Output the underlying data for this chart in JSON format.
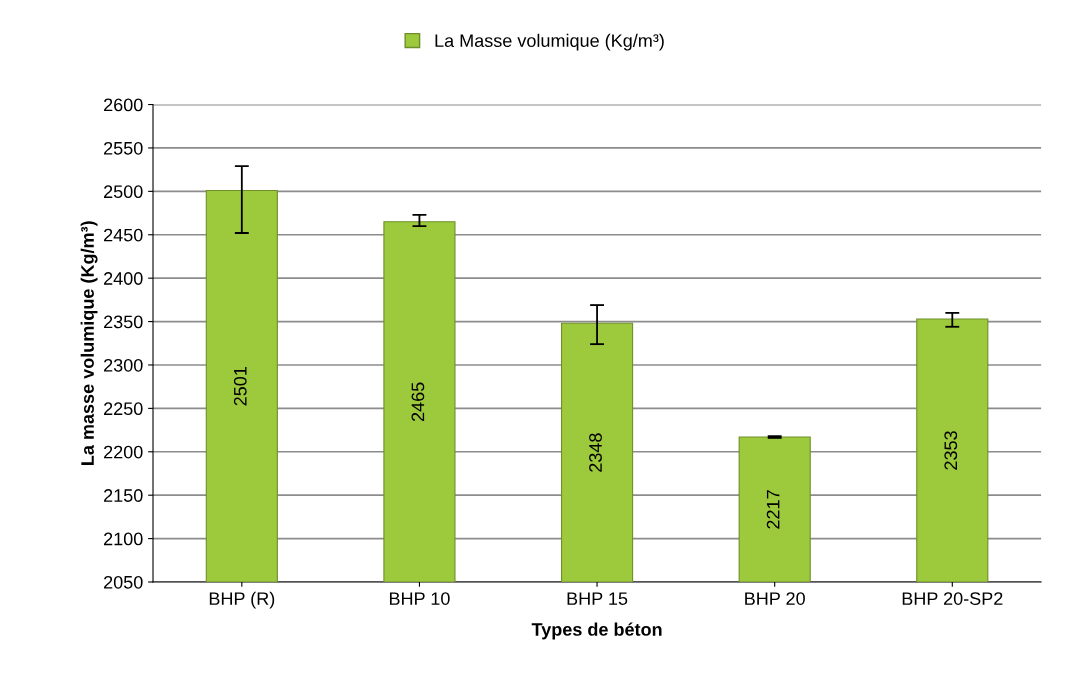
{
  "chart_data": {
    "type": "bar",
    "categories": [
      "BHP (R)",
      "BHP 10",
      "BHP 15",
      "BHP 20",
      "BHP 20-SP2"
    ],
    "series": [
      {
        "name": "La Masse volumique (Kg/m³)",
        "color": "#9dc93c",
        "values": [
          2501,
          2465,
          2348,
          2217,
          2353
        ],
        "errors": [
          [
            2452,
            2529
          ],
          [
            2460,
            2473
          ],
          [
            2324,
            2369
          ],
          [
            2216,
            2218
          ],
          [
            2344,
            2360
          ]
        ]
      }
    ],
    "xlabel": "Types de béton",
    "ylabel": "La masse volumique (Kg/m³)",
    "ylim": [
      2050,
      2600
    ],
    "yticks": [
      2050,
      2100,
      2150,
      2200,
      2250,
      2300,
      2350,
      2400,
      2450,
      2500,
      2550,
      2600
    ],
    "grid": "y",
    "legend": "top",
    "data_labels": true
  }
}
